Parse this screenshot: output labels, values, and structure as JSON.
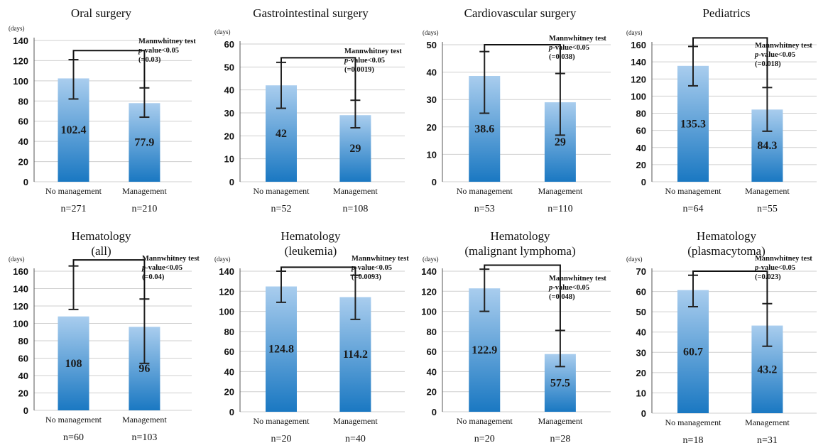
{
  "unit_label": "(days)",
  "stat_test": "Mannwhitney test",
  "p_prefix": "p",
  "p_suffix": "-value<0.05",
  "colors": {
    "bar_top": "#a9cdee",
    "bar_bottom": "#1a78c2",
    "grid": "#cfcfcf",
    "axis": "#555555",
    "text": "#111111"
  },
  "chart_data": [
    {
      "type": "bar",
      "title": "Oral surgery",
      "categories": [
        "No management",
        "Management"
      ],
      "values": [
        102.4,
        77.9
      ],
      "value_labels": [
        "102.4",
        "77.9"
      ],
      "error_high": [
        121,
        93
      ],
      "error_low": [
        82,
        64
      ],
      "n_labels": [
        "n=271",
        "n=210"
      ],
      "yticks": [
        0,
        20,
        40,
        60,
        80,
        100,
        120,
        140
      ],
      "ylim": [
        0,
        140
      ],
      "ylabel": "(days)",
      "bracket_y": 130,
      "p_exact": "(=0.03)",
      "grid": true
    },
    {
      "type": "bar",
      "title": "Gastrointestinal surgery",
      "categories": [
        "No management",
        "Management"
      ],
      "values": [
        42,
        29
      ],
      "value_labels": [
        "42",
        "29"
      ],
      "error_high": [
        52,
        35.5
      ],
      "error_low": [
        32,
        23.5
      ],
      "n_labels": [
        "n=52",
        "n=108"
      ],
      "yticks": [
        0,
        10,
        20,
        30,
        40,
        50,
        60
      ],
      "ylim": [
        0,
        60
      ],
      "ylabel": "(days)",
      "bracket_y": 54,
      "p_exact": "(=0.0019)",
      "grid": true
    },
    {
      "type": "bar",
      "title": "Cardiovascular surgery",
      "categories": [
        "No management",
        "Management"
      ],
      "values": [
        38.6,
        29
      ],
      "value_labels": [
        "38.6",
        "29"
      ],
      "error_high": [
        47.5,
        39.5
      ],
      "error_low": [
        25,
        17
      ],
      "n_labels": [
        "n=53",
        "n=110"
      ],
      "yticks": [
        0,
        10,
        20,
        30,
        40,
        50
      ],
      "ylim": [
        0,
        50
      ],
      "ylabel": "(days)",
      "bracket_y": 50,
      "p_exact": "(=0.038)",
      "grid": true
    },
    {
      "type": "bar",
      "title": "Pediatrics",
      "categories": [
        "No management",
        "Management"
      ],
      "values": [
        135.3,
        84.3
      ],
      "value_labels": [
        "135.3",
        "84.3"
      ],
      "error_high": [
        158,
        110
      ],
      "error_low": [
        112,
        59
      ],
      "n_labels": [
        "n=64",
        "n=55"
      ],
      "yticks": [
        0,
        20,
        40,
        60,
        80,
        100,
        120,
        140,
        160
      ],
      "ylim": [
        0,
        160
      ],
      "ylabel": "(days)",
      "bracket_y": 168,
      "p_exact": "(=0.018)",
      "grid": true
    },
    {
      "type": "bar",
      "title": "Hematology\n(all)",
      "categories": [
        "No management",
        "Management"
      ],
      "values": [
        108,
        96
      ],
      "value_labels": [
        "108",
        "96"
      ],
      "error_high": [
        166,
        128
      ],
      "error_low": [
        116,
        54
      ],
      "n_labels": [
        "n=60",
        "n=103"
      ],
      "yticks": [
        0,
        20,
        40,
        60,
        80,
        100,
        120,
        140,
        160
      ],
      "ylim": [
        0,
        160
      ],
      "ylabel": "(days)",
      "bracket_y": 173,
      "p_exact": "(=0.04)",
      "grid": true
    },
    {
      "type": "bar",
      "title": "Hematology\n(leukemia)",
      "categories": [
        "No management",
        "Management"
      ],
      "values": [
        124.8,
        114.2
      ],
      "value_labels": [
        "124.8",
        "114.2"
      ],
      "error_high": [
        140,
        136
      ],
      "error_low": [
        109,
        92
      ],
      "n_labels": [
        "n=20",
        "n=40"
      ],
      "yticks": [
        0,
        20,
        40,
        60,
        80,
        100,
        120,
        140
      ],
      "ylim": [
        0,
        140
      ],
      "ylabel": "(days)",
      "bracket_y": 144,
      "p_exact": "(=0.0093)",
      "grid": true
    },
    {
      "type": "bar",
      "title": "Hematology\n(malignant lymphoma)",
      "categories": [
        "No management",
        "Management"
      ],
      "values": [
        122.9,
        57.5
      ],
      "value_labels": [
        "122.9",
        "57.5"
      ],
      "error_high": [
        142,
        81
      ],
      "error_low": [
        100,
        45
      ],
      "n_labels": [
        "n=20",
        "n=28"
      ],
      "yticks": [
        0,
        20,
        40,
        60,
        80,
        100,
        120,
        140
      ],
      "ylim": [
        0,
        140
      ],
      "ylabel": "(days)",
      "bracket_y": 146,
      "p_exact": "(=0.048)",
      "grid": true
    },
    {
      "type": "bar",
      "title": "Hematology\n(plasmacytoma)",
      "categories": [
        "No management",
        "Management"
      ],
      "values": [
        60.7,
        43.2
      ],
      "value_labels": [
        "60.7",
        "43.2"
      ],
      "error_high": [
        68,
        54
      ],
      "error_low": [
        52.5,
        33
      ],
      "n_labels": [
        "n=18",
        "n=31"
      ],
      "yticks": [
        0,
        10,
        20,
        30,
        40,
        50,
        60,
        70
      ],
      "ylim": [
        0,
        70
      ],
      "ylabel": "(days)",
      "bracket_y": 70,
      "p_exact": "(=0.023)",
      "grid": true
    }
  ]
}
